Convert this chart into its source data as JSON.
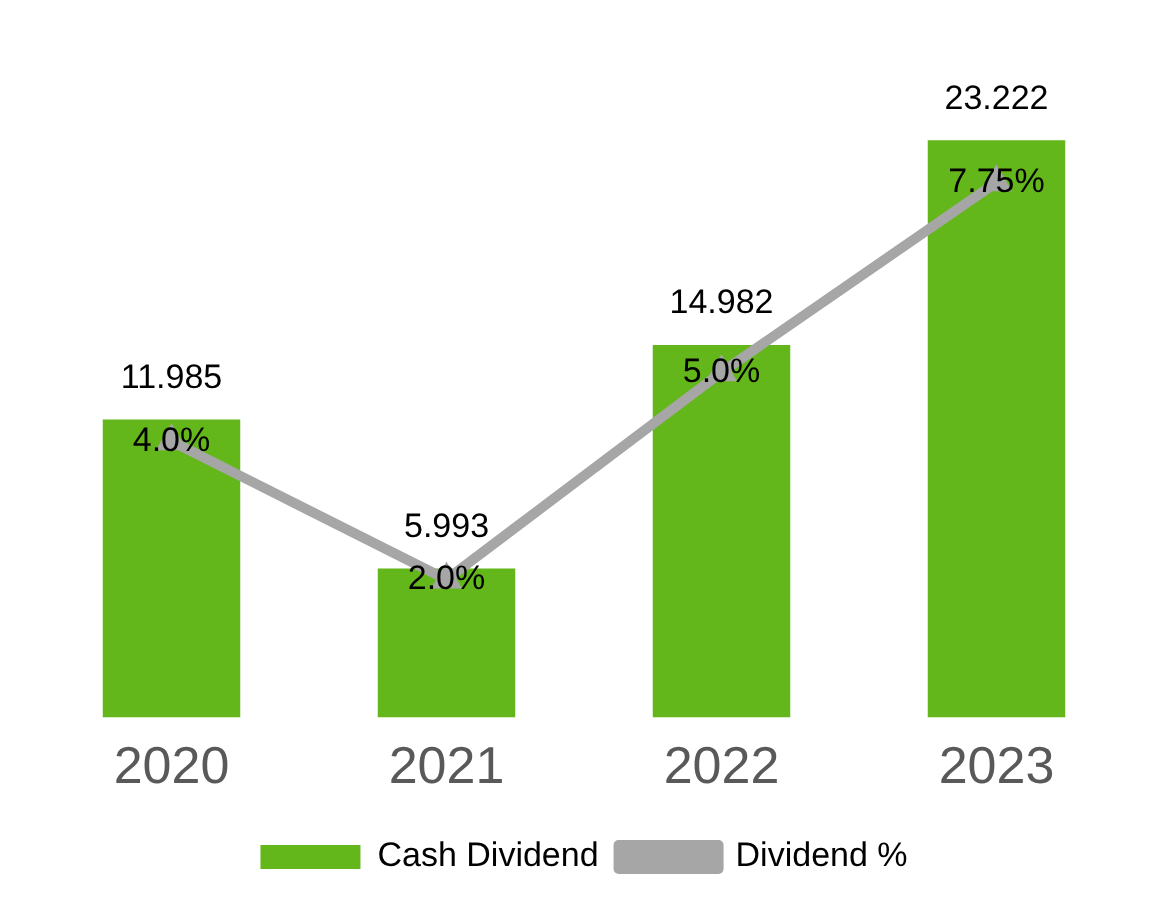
{
  "chart_data": {
    "type": "bar",
    "categories": [
      "2020",
      "2021",
      "2022",
      "2023"
    ],
    "series": [
      {
        "name": "Cash Dividend",
        "color": "#63b71a",
        "values": [
          11.985,
          5.993,
          14.982,
          23.222
        ]
      },
      {
        "name": "Dividend %",
        "type": "line",
        "axis": "y2",
        "color": "#a6a6a6",
        "values": [
          4.0,
          2.0,
          5.0,
          7.75
        ],
        "value_labels": [
          "4.0%",
          "2.0%",
          "5.0%",
          "7.75%"
        ]
      }
    ],
    "data_labels": true,
    "legend": "bottom",
    "grid": false,
    "marker": "triangle",
    "line_style": "solid"
  }
}
